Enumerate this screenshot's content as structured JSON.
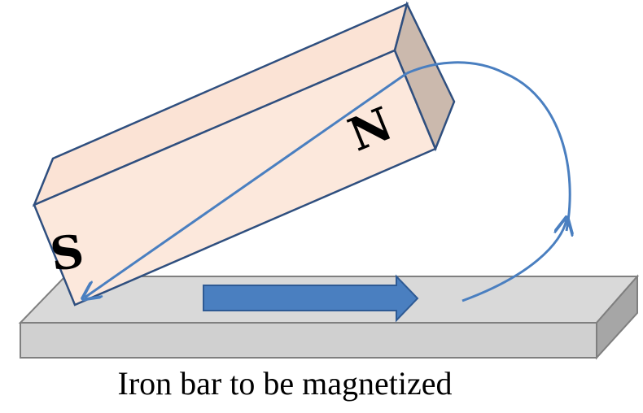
{
  "diagram": {
    "caption": "Iron bar to be magnetized",
    "magnet": {
      "south_label": "S",
      "north_label": "N"
    }
  },
  "colors": {
    "iron_top": "#d9d9d9",
    "iron_front": "#d0d0d0",
    "iron_side": "#a6a6a6",
    "iron_outline": "#7f7f7f",
    "magnet_face": "#fce8dc",
    "magnet_top": "#fbe3d5",
    "magnet_end": "#cbb9ad",
    "magnet_outline": "#2f4f7f",
    "arrow_fill": "#4a7fc0",
    "arrow_outline": "#2e5a94",
    "stroke_path": "#4a7fc0"
  }
}
